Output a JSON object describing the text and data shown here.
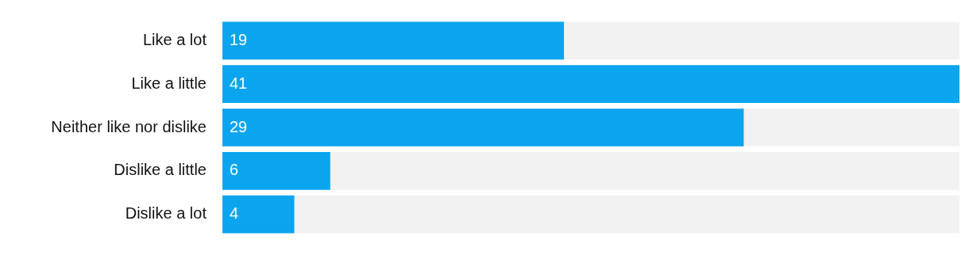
{
  "chart_data": {
    "type": "bar",
    "orientation": "horizontal",
    "categories": [
      "Like a lot",
      "Like a little",
      "Neither like nor dislike",
      "Dislike a little",
      "Dislike a lot"
    ],
    "values": [
      19,
      41,
      29,
      6,
      4
    ],
    "color": "#0aa5ee",
    "xlim": [
      0,
      41
    ],
    "data_labels": true,
    "legend": false,
    "tick_labels": "y"
  }
}
